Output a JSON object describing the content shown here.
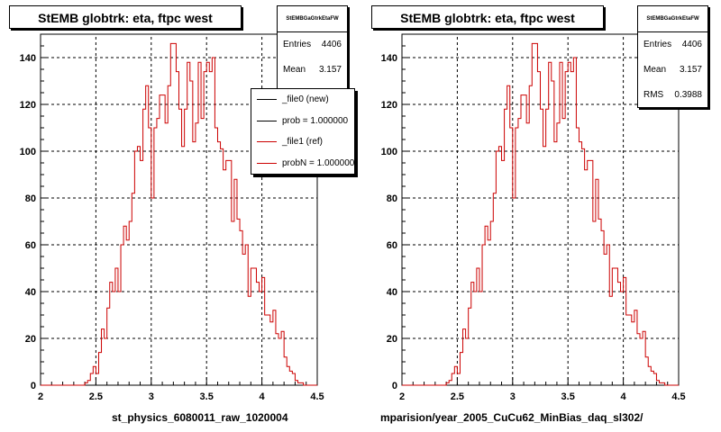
{
  "pads": [
    {
      "title": "StEMB globtrk: eta, ftpc west",
      "stats": {
        "name": "StEMBGaGtrkEtaFW",
        "rows": [
          {
            "label": "Entries",
            "value": "4406"
          },
          {
            "label": "Mean",
            "value": "3.157"
          }
        ]
      },
      "legend": {
        "entries": [
          {
            "label": "_file0 (new)",
            "color": "#000000"
          },
          {
            "label": "prob = 1.000000",
            "color": "#000000"
          },
          {
            "label": "_file1 (ref)",
            "color": "#cc0000"
          },
          {
            "label": "probN = 1.000000",
            "color": "#cc0000"
          }
        ]
      },
      "xcaption": "st_physics_6080011_raw_1020004"
    },
    {
      "title": "StEMB globtrk: eta, ftpc west",
      "stats": {
        "name": "StEMBGaGtrkEtaFW",
        "rows": [
          {
            "label": "Entries",
            "value": "4406"
          },
          {
            "label": "Mean",
            "value": "3.157"
          },
          {
            "label": "RMS",
            "value": "0.3988"
          }
        ]
      },
      "xcaption": "mparision/year_2005_CuCu62_MinBias_daq_sl302/"
    }
  ],
  "chart_data": {
    "type": "histogram",
    "x_edges_start": 2.0,
    "bin_width": 0.025,
    "xlim": [
      2.0,
      4.5
    ],
    "ylim": [
      0,
      150
    ],
    "x_ticks": [
      "2",
      "2.5",
      "3",
      "3.5",
      "4",
      "4.5"
    ],
    "y_ticks": [
      "0",
      "20",
      "40",
      "60",
      "80",
      "100",
      "120",
      "140"
    ],
    "grid": true,
    "line_color": "#cc0000",
    "values": [
      0,
      0,
      0,
      0,
      0,
      0,
      0,
      0,
      0,
      0,
      0,
      0,
      0,
      0,
      0,
      0,
      1,
      2,
      5,
      8,
      5,
      14,
      24,
      20,
      33,
      44,
      40,
      50,
      40,
      60,
      68,
      62,
      70,
      82,
      100,
      102,
      96,
      118,
      128,
      110,
      80,
      110,
      114,
      124,
      124,
      112,
      128,
      146,
      146,
      134,
      118,
      102,
      118,
      138,
      130,
      104,
      112,
      138,
      114,
      134,
      138,
      134,
      140,
      110,
      104,
      101,
      92,
      96,
      96,
      70,
      88,
      71,
      66,
      56,
      60,
      38,
      50,
      50,
      44,
      40,
      46,
      30,
      30,
      27,
      32,
      22,
      20,
      23,
      12,
      8,
      6,
      5,
      2,
      1,
      1,
      0,
      0,
      0,
      0,
      0
    ]
  }
}
